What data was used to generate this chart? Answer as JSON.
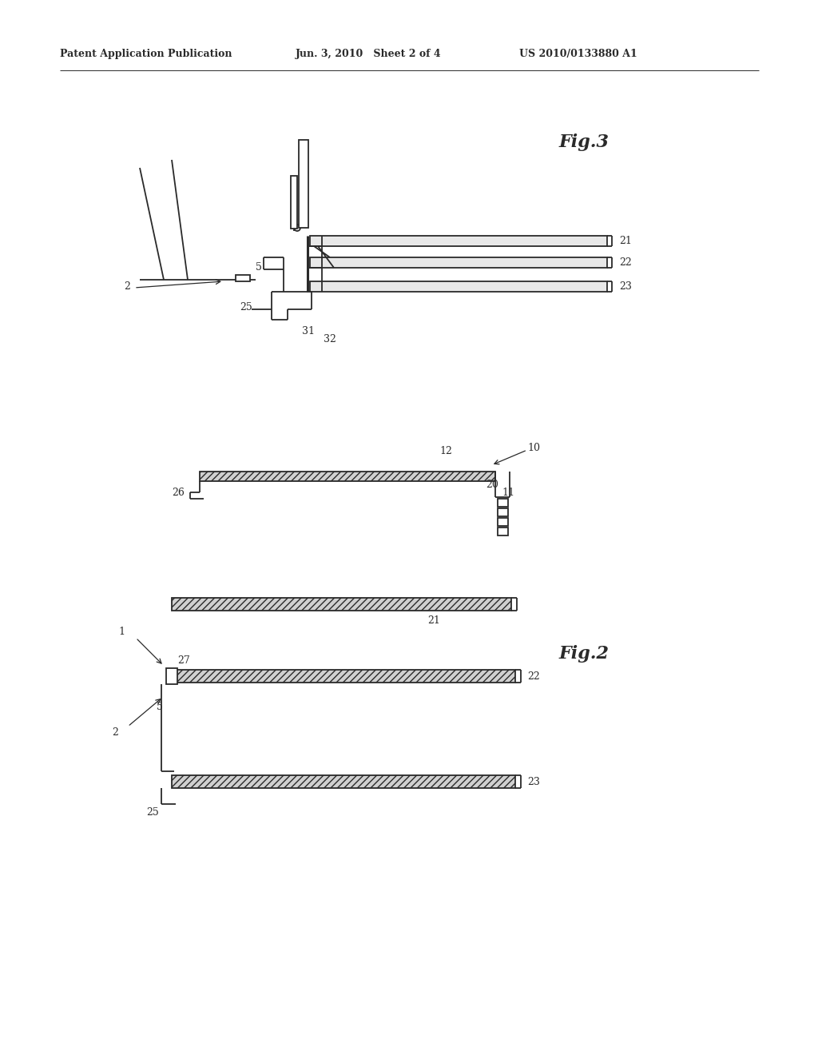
{
  "bg_color": "#ffffff",
  "line_color": "#2a2a2a",
  "hatch_pattern": "////",
  "line_width": 1.3,
  "thick_line": 2.2,
  "header_left": "Patent Application Publication",
  "header_mid": "Jun. 3, 2010   Sheet 2 of 4",
  "header_right": "US 2010/0133880 A1",
  "fig3_label": "Fig.3",
  "fig2_label": "Fig.2"
}
